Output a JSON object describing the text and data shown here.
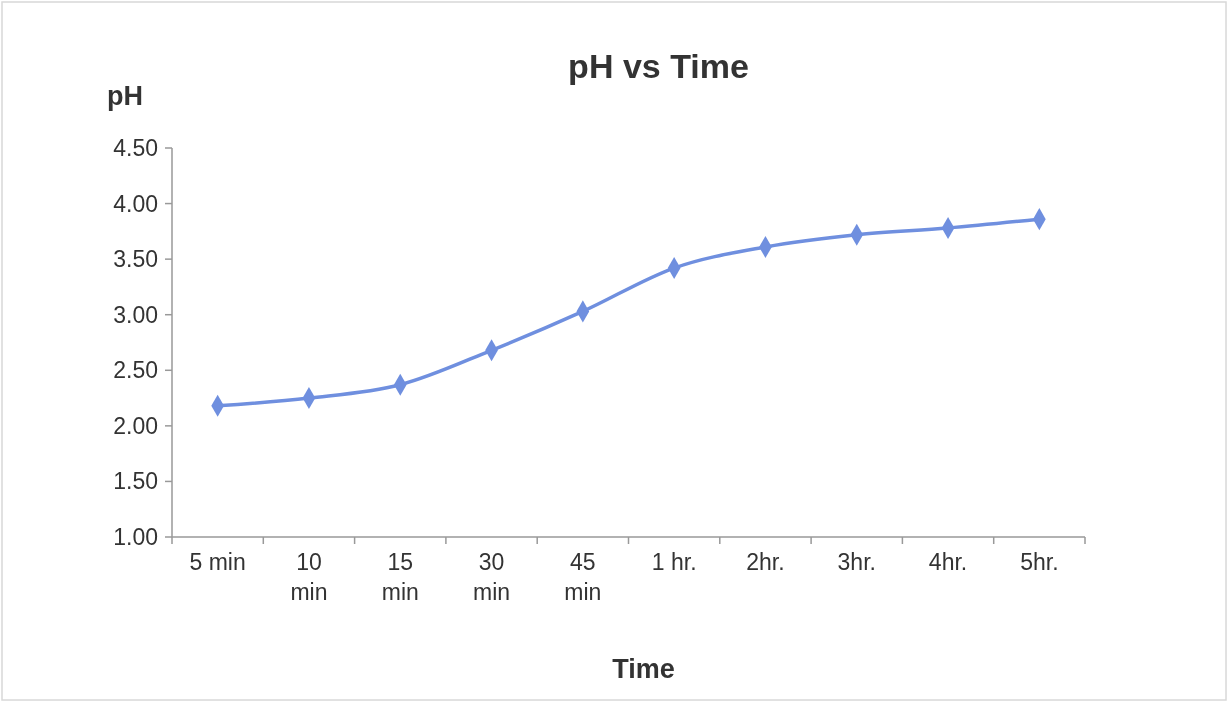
{
  "chart_data": {
    "type": "line",
    "title": "pH vs Time",
    "xlabel": "Time",
    "ylabel": "pH",
    "categories": [
      "5 min",
      "10\nmin",
      "15\nmin",
      "30\nmin",
      "45\nmin",
      "1 hr.",
      "2hr.",
      "3hr.",
      "4hr.",
      "5hr."
    ],
    "series": [
      {
        "color": "#6f8fdf",
        "values": [
          2.18,
          2.25,
          2.37,
          2.68,
          3.03,
          3.42,
          3.61,
          3.72,
          3.78,
          3.86
        ]
      }
    ],
    "ylim": [
      1,
      4.5
    ],
    "yticks": [
      {
        "value": 1,
        "label": "1.00"
      },
      {
        "value": 1.5,
        "label": "1.50"
      },
      {
        "value": 2,
        "label": "2.00"
      },
      {
        "value": 2.5,
        "label": "2.50"
      },
      {
        "value": 3,
        "label": "3.00"
      },
      {
        "value": 3.5,
        "label": "3.50"
      },
      {
        "value": 4,
        "label": "4.00"
      },
      {
        "value": 4.5,
        "label": "4.50"
      }
    ],
    "grid": false,
    "marker": "diamond",
    "line_style": "solid"
  }
}
